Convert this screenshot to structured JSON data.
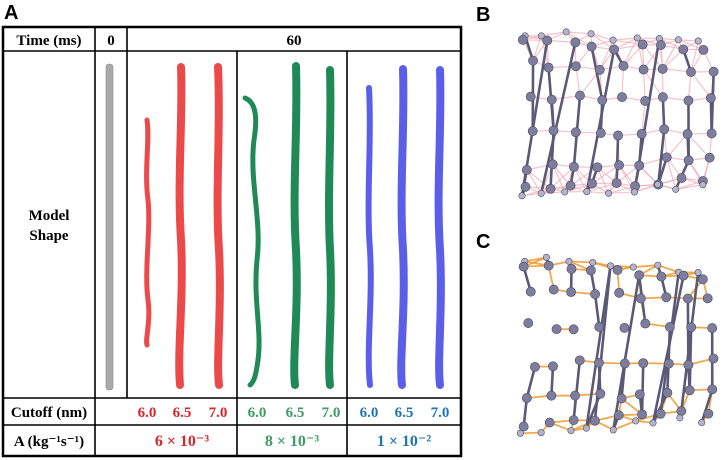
{
  "panels": {
    "a": "A",
    "b": "B",
    "c": "C"
  },
  "table": {
    "header": {
      "time_label": "Time (ms)",
      "time_zero": "0",
      "time_sixty": "60"
    },
    "row_label": [
      "Model",
      "Shape"
    ],
    "cutoff_label": "Cutoff (nm)",
    "a_label": "A (kg⁻¹s⁻¹)",
    "groups": [
      {
        "cutoffs": [
          "6.0",
          "6.5",
          "7.0"
        ],
        "a_value": "6 × 10⁻³",
        "color": "#d9252b"
      },
      {
        "cutoffs": [
          "6.0",
          "6.5",
          "7.0"
        ],
        "a_value": "8 × 10⁻³",
        "color": "#3f9a63"
      },
      {
        "cutoffs": [
          "6.0",
          "6.5",
          "7.0"
        ],
        "a_value": "1 × 10⁻²",
        "color": "#1f74b5"
      }
    ]
  },
  "colors": {
    "initial_shape": "#a9a9a9",
    "red_shape": "#ec4a4a",
    "green_shape": "#1f8a56",
    "blue_shape": "#5b5ee8",
    "bead": "#8a8aa8",
    "bond_b": "#f4a7b0",
    "bond_c": "#f0a03c"
  }
}
